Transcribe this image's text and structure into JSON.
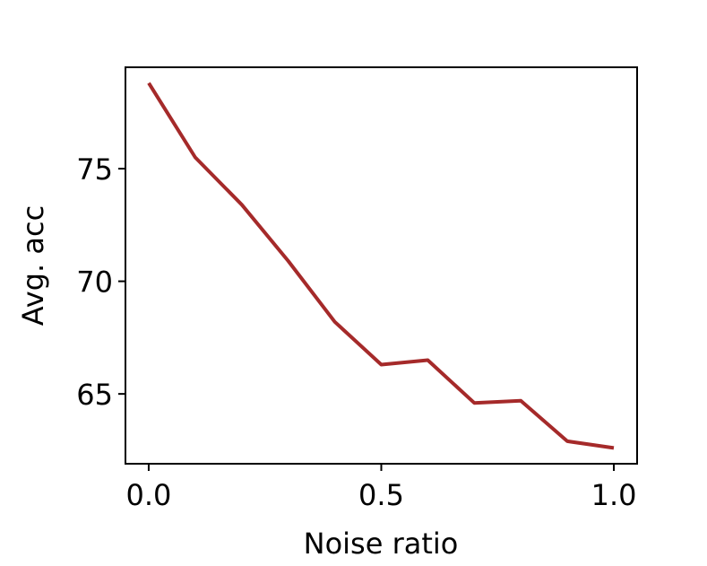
{
  "colors": {
    "line": "#a52a2a",
    "axes": "#000000",
    "background": "#ffffff"
  },
  "chart_data": {
    "type": "line",
    "xlabel": "Noise ratio",
    "ylabel": "Avg. acc",
    "xlim": [
      -0.05,
      1.05
    ],
    "ylim": [
      61.9,
      79.5
    ],
    "grid": false,
    "xticks": [
      0.0,
      0.5,
      1.0
    ],
    "xtick_labels": [
      "0.0",
      "0.5",
      "1.0"
    ],
    "yticks": [
      65,
      70,
      75
    ],
    "ytick_labels": [
      "65",
      "70",
      "75"
    ],
    "series": [
      {
        "x": [
          0.0,
          0.1,
          0.2,
          0.3,
          0.4,
          0.5,
          0.6,
          0.7,
          0.8,
          0.9,
          1.0
        ],
        "y": [
          78.8,
          75.5,
          73.4,
          70.9,
          68.2,
          66.3,
          66.5,
          64.6,
          64.7,
          62.9,
          62.6
        ]
      }
    ]
  }
}
